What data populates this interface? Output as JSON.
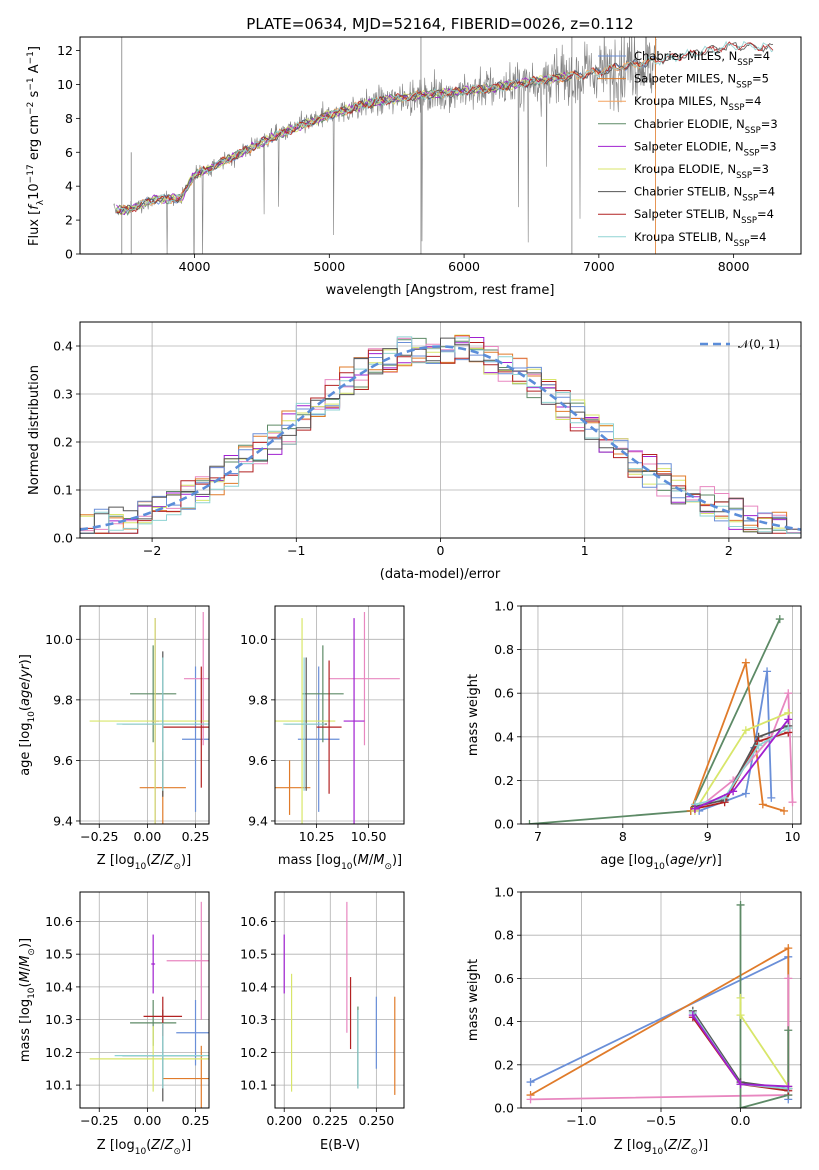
{
  "title": "PLATE=0634, MJD=52164, FIBERID=0026, z=0.112",
  "colors": {
    "Chabrier MILES": "#6a8fd8",
    "Salpeter MILES": "#e07b2a",
    "Kroupa MILES": "#f4a460",
    "Chabrier ELODIE": "#5d8a66",
    "Salpeter ELODIE": "#a020d0",
    "Kroupa ELODIE": "#d8e66a",
    "Chabrier STELIB": "#555555",
    "Salpeter STELIB": "#b22222",
    "Kroupa STELIB": "#8fd3d3",
    "Kroupa MILES (hist)": "#e887c0",
    "data": "#808080",
    "gauss": "#5b8dd9"
  },
  "chart_data": [
    {
      "type": "line",
      "name": "spectrum",
      "xlabel": "wavelength [Angstrom, rest frame]",
      "ylabel_parts": [
        "Flux [",
        "f",
        "λ",
        "10",
        "−17",
        " erg cm",
        "−2",
        " s",
        "−1",
        " A",
        "−1",
        "]"
      ],
      "xlim": [
        3150,
        8500
      ],
      "ylim": [
        0,
        12.8
      ],
      "xticks": [
        4000,
        5000,
        6000,
        7000,
        8000
      ],
      "yticks": [
        0,
        2,
        4,
        6,
        8,
        10,
        12
      ],
      "legend": [
        {
          "model": "Chabrier MILES, N",
          "sub": "SSP",
          "n": "=4"
        },
        {
          "model": "Salpeter MILES, N",
          "sub": "SSP",
          "n": "=5"
        },
        {
          "model": "Kroupa MILES, N",
          "sub": "SSP",
          "n": "=4"
        },
        {
          "model": "Chabrier ELODIE, N",
          "sub": "SSP",
          "n": "=3"
        },
        {
          "model": "Salpeter ELODIE, N",
          "sub": "SSP",
          "n": "=3"
        },
        {
          "model": "Kroupa ELODIE, N",
          "sub": "SSP",
          "n": "=3"
        },
        {
          "model": "Chabrier STELIB, N",
          "sub": "SSP",
          "n": "=4"
        },
        {
          "model": "Salpeter STELIB, N",
          "sub": "SSP",
          "n": "=4"
        },
        {
          "model": "Kroupa STELIB, N",
          "sub": "SSP",
          "n": "=4"
        }
      ],
      "model_continuum": {
        "x": [
          3400,
          3500,
          3700,
          3900,
          4000,
          4100,
          4300,
          4500,
          4700,
          5000,
          5300,
          5600,
          6000,
          6300,
          6600,
          6900,
          7200,
          7500,
          7800,
          8000,
          8200,
          8300
        ],
        "y": [
          2.6,
          2.6,
          3.2,
          3.3,
          4.7,
          5.0,
          5.8,
          6.6,
          7.3,
          8.2,
          8.9,
          9.3,
          9.6,
          9.9,
          10.3,
          10.6,
          11.1,
          11.5,
          12.0,
          12.3,
          12.2,
          12.1
        ]
      },
      "data_range": [
        3400,
        7430
      ]
    },
    {
      "type": "bar",
      "name": "residual histogram",
      "xlabel": "(data-model)/error",
      "ylabel": "Normed distribution",
      "xlim": [
        -2.5,
        2.5
      ],
      "ylim": [
        0,
        0.45
      ],
      "xticks": [
        -2,
        -1,
        0,
        1,
        2
      ],
      "yticks": [
        0.0,
        0.1,
        0.2,
        0.3,
        0.4
      ],
      "legend_label": "𝒩(0, 1)",
      "bin_width": 0.1,
      "gaussian": {
        "mu": 0,
        "sigma": 1
      }
    },
    {
      "type": "scatter",
      "name": "age vs metallicity",
      "xlabel": "Z [log10(Z/Z⊙)]",
      "ylabel": "age [log10(age/yr)]",
      "xlim": [
        -0.35,
        0.32
      ],
      "ylim": [
        9.39,
        10.11
      ],
      "xticks": [
        -0.25,
        0.0,
        0.25
      ],
      "yticks": [
        9.4,
        9.6,
        9.8,
        10.0
      ],
      "points": [
        {
          "model": "Chabrier MILES",
          "x": 0.25,
          "y": 9.67,
          "xe": 0.07,
          "ye": 0.24
        },
        {
          "model": "Salpeter MILES",
          "x": 0.08,
          "y": 9.51,
          "xe": 0.12,
          "ye": 0.12
        },
        {
          "model": "Kroupa MILES (hist)",
          "x": 0.29,
          "y": 9.87,
          "xe": 0.1,
          "ye": 0.22
        },
        {
          "model": "Chabrier ELODIE",
          "x": 0.03,
          "y": 9.82,
          "xe": 0.12,
          "ye": 0.16
        },
        {
          "model": "Salpeter ELODIE",
          "x": 0.04,
          "y": 9.73,
          "xe": 0.02,
          "ye": 0.34
        },
        {
          "model": "Kroupa ELODIE",
          "x": 0.04,
          "y": 9.73,
          "xe": 0.34,
          "ye": 0.34
        },
        {
          "model": "Chabrier STELIB",
          "x": 0.08,
          "y": 9.72,
          "xe": 0.21,
          "ye": 0.24
        },
        {
          "model": "Salpeter STELIB",
          "x": 0.28,
          "y": 9.71,
          "xe": 0.2,
          "ye": 0.2
        },
        {
          "model": "Kroupa STELIB",
          "x": 0.08,
          "y": 9.72,
          "xe": 0.24,
          "ye": 0.22
        }
      ]
    },
    {
      "type": "scatter",
      "name": "age vs mass",
      "xlabel": "mass [log10(M/M⊙)]",
      "xlim": [
        10.05,
        10.67
      ],
      "ylim": [
        9.39,
        10.11
      ],
      "xticks": [
        10.25,
        10.5
      ],
      "yticks": [
        9.4,
        9.6,
        9.8,
        10.0
      ],
      "points": [
        {
          "model": "Chabrier MILES",
          "x": 10.26,
          "y": 9.67,
          "xe": 0.1,
          "ye": 0.24
        },
        {
          "model": "Salpeter MILES",
          "x": 10.12,
          "y": 9.51,
          "xe": 0.1,
          "ye": 0.09
        },
        {
          "model": "Kroupa MILES (hist)",
          "x": 10.48,
          "y": 9.87,
          "xe": 0.17,
          "ye": 0.22
        },
        {
          "model": "Chabrier ELODIE",
          "x": 10.28,
          "y": 9.82,
          "xe": 0.1,
          "ye": 0.16
        },
        {
          "model": "Salpeter ELODIE",
          "x": 10.43,
          "y": 9.73,
          "xe": 0.05,
          "ye": 0.34
        },
        {
          "model": "Kroupa ELODIE",
          "x": 10.18,
          "y": 9.73,
          "xe": 0.16,
          "ye": 0.34
        },
        {
          "model": "Chabrier STELIB",
          "x": 10.2,
          "y": 9.72,
          "xe": 0.1,
          "ye": 0.22
        },
        {
          "model": "Salpeter STELIB",
          "x": 10.31,
          "y": 9.71,
          "xe": 0.06,
          "ye": 0.22
        },
        {
          "model": "Kroupa STELIB",
          "x": 10.19,
          "y": 9.72,
          "xe": 0.1,
          "ye": 0.22
        }
      ]
    },
    {
      "type": "line",
      "name": "mass weight vs age",
      "xlabel": "age [log10(age/yr)]",
      "ylabel": "mass weight",
      "xlim": [
        6.8,
        10.1
      ],
      "ylim": [
        0,
        1.0
      ],
      "xticks": [
        7,
        8,
        9,
        10
      ],
      "yticks": [
        0.0,
        0.2,
        0.4,
        0.6,
        0.8,
        1.0
      ],
      "series": [
        {
          "model": "Chabrier ELODIE",
          "x": [
            6.9,
            8.8,
            9.85
          ],
          "y": [
            0.0,
            0.06,
            0.94
          ]
        },
        {
          "model": "Salpeter MILES",
          "x": [
            8.8,
            9.45,
            9.65,
            9.9
          ],
          "y": [
            0.06,
            0.74,
            0.09,
            0.06
          ]
        },
        {
          "model": "Chabrier MILES",
          "x": [
            8.9,
            9.45,
            9.55,
            9.7,
            9.75
          ],
          "y": [
            0.06,
            0.14,
            0.35,
            0.7,
            0.12
          ]
        },
        {
          "model": "Kroupa MILES (hist)",
          "x": [
            8.85,
            9.3,
            9.75,
            9.95,
            10.0
          ],
          "y": [
            0.06,
            0.2,
            0.4,
            0.6,
            0.1
          ]
        },
        {
          "model": "Kroupa ELODIE",
          "x": [
            8.85,
            9.45,
            9.95
          ],
          "y": [
            0.06,
            0.43,
            0.51
          ]
        },
        {
          "model": "Chabrier STELIB",
          "x": [
            8.85,
            9.2,
            9.6,
            9.95
          ],
          "y": [
            0.08,
            0.11,
            0.4,
            0.45
          ]
        },
        {
          "model": "Salpeter STELIB",
          "x": [
            8.85,
            9.2,
            9.6,
            9.95
          ],
          "y": [
            0.07,
            0.1,
            0.38,
            0.42
          ]
        },
        {
          "model": "Kroupa STELIB",
          "x": [
            8.85,
            9.2,
            9.6,
            9.95
          ],
          "y": [
            0.09,
            0.12,
            0.36,
            0.44
          ]
        },
        {
          "model": "Salpeter ELODIE",
          "x": [
            8.85,
            9.3,
            9.95
          ],
          "y": [
            0.07,
            0.15,
            0.48
          ]
        }
      ]
    },
    {
      "type": "scatter",
      "name": "mass vs metallicity",
      "xlabel": "Z [log10(Z/Z⊙)]",
      "ylabel": "mass [log10(M/M⊙)]",
      "xlim": [
        -0.35,
        0.32
      ],
      "ylim": [
        10.03,
        10.69
      ],
      "xticks": [
        -0.25,
        0.0,
        0.25
      ],
      "yticks": [
        10.1,
        10.2,
        10.3,
        10.4,
        10.5,
        10.6
      ],
      "points": [
        {
          "model": "Chabrier MILES",
          "x": 0.25,
          "y": 10.26,
          "xe": 0.1,
          "ye": 0.1
        },
        {
          "model": "Salpeter MILES",
          "x": 0.28,
          "y": 10.12,
          "xe": 0.2,
          "ye": 0.1
        },
        {
          "model": "Kroupa MILES (hist)",
          "x": 0.28,
          "y": 10.48,
          "xe": 0.18,
          "ye": 0.18
        },
        {
          "model": "Chabrier ELODIE",
          "x": 0.03,
          "y": 10.29,
          "xe": 0.12,
          "ye": 0.07
        },
        {
          "model": "Salpeter ELODIE",
          "x": 0.03,
          "y": 10.47,
          "xe": 0.01,
          "ye": 0.09
        },
        {
          "model": "Kroupa ELODIE",
          "x": 0.03,
          "y": 10.18,
          "xe": 0.33,
          "ye": 0.1
        },
        {
          "model": "Chabrier STELIB",
          "x": 0.08,
          "y": 10.19,
          "xe": 0.21,
          "ye": 0.14
        },
        {
          "model": "Salpeter STELIB",
          "x": 0.08,
          "y": 10.31,
          "xe": 0.1,
          "ye": 0.06
        },
        {
          "model": "Kroupa STELIB",
          "x": 0.08,
          "y": 10.19,
          "xe": 0.25,
          "ye": 0.1
        }
      ]
    },
    {
      "type": "scatter",
      "name": "mass vs extinction",
      "xlabel": "E(B-V)",
      "xlim": [
        0.195,
        0.265
      ],
      "ylim": [
        10.03,
        10.69
      ],
      "xticks": [
        0.2,
        0.225,
        0.25
      ],
      "yticks": [
        10.1,
        10.2,
        10.3,
        10.4,
        10.5,
        10.6
      ],
      "points": [
        {
          "model": "Chabrier MILES",
          "x": 0.25,
          "y": 10.26,
          "ye": 0.11
        },
        {
          "model": "Salpeter MILES",
          "x": 0.26,
          "y": 10.22,
          "ye": 0.15
        },
        {
          "model": "Kroupa MILES (hist)",
          "x": 0.234,
          "y": 10.46,
          "ye": 0.2
        },
        {
          "model": "Chabrier ELODIE",
          "x": 0.24,
          "y": 10.22,
          "ye": 0.12
        },
        {
          "model": "Salpeter ELODIE",
          "x": 0.2,
          "y": 10.47,
          "ye": 0.09
        },
        {
          "model": "Kroupa ELODIE",
          "x": 0.204,
          "y": 10.26,
          "ye": 0.18
        },
        {
          "model": "Chabrier STELIB",
          "x": 0.24,
          "y": 10.21,
          "ye": 0.12
        },
        {
          "model": "Salpeter STELIB",
          "x": 0.236,
          "y": 10.32,
          "ye": 0.11
        },
        {
          "model": "Kroupa STELIB",
          "x": 0.24,
          "y": 10.21,
          "ye": 0.12
        }
      ]
    },
    {
      "type": "line",
      "name": "mass weight vs metallicity",
      "xlabel": "Z [log10(Z/Z⊙)]",
      "ylabel": "mass weight",
      "xlim": [
        -1.38,
        0.38
      ],
      "ylim": [
        0,
        1.0
      ],
      "xticks": [
        -1.0,
        -0.5,
        0.0
      ],
      "yticks": [
        0.0,
        0.2,
        0.4,
        0.6,
        0.8,
        1.0
      ],
      "series": [
        {
          "model": "Chabrier MILES",
          "x": [
            -1.32,
            0.3,
            0.3
          ],
          "y": [
            0.12,
            0.7,
            0.04
          ]
        },
        {
          "model": "Salpeter MILES",
          "x": [
            -1.32,
            0.3,
            0.3
          ],
          "y": [
            0.06,
            0.74,
            0.09
          ]
        },
        {
          "model": "Kroupa MILES (hist)",
          "x": [
            -1.32,
            0.3,
            0.3
          ],
          "y": [
            0.04,
            0.06,
            0.6
          ]
        },
        {
          "model": "Chabrier ELODIE",
          "x": [
            0.0,
            0.0,
            0.3,
            0.3
          ],
          "y": [
            0.94,
            0.0,
            0.06,
            0.36
          ]
        },
        {
          "model": "Kroupa ELODIE",
          "x": [
            0.0,
            0.0,
            0.3
          ],
          "y": [
            0.51,
            0.43,
            0.1
          ]
        },
        {
          "model": "Chabrier STELIB",
          "x": [
            -0.3,
            0.0,
            0.3
          ],
          "y": [
            0.45,
            0.12,
            0.09
          ]
        },
        {
          "model": "Salpeter STELIB",
          "x": [
            -0.3,
            0.0,
            0.3
          ],
          "y": [
            0.42,
            0.11,
            0.08
          ]
        },
        {
          "model": "Kroupa STELIB",
          "x": [
            -0.3,
            0.0,
            0.3
          ],
          "y": [
            0.44,
            0.11,
            0.09
          ]
        },
        {
          "model": "Salpeter ELODIE",
          "x": [
            -0.3,
            0.0,
            0.3
          ],
          "y": [
            0.43,
            0.11,
            0.1
          ]
        }
      ]
    }
  ]
}
